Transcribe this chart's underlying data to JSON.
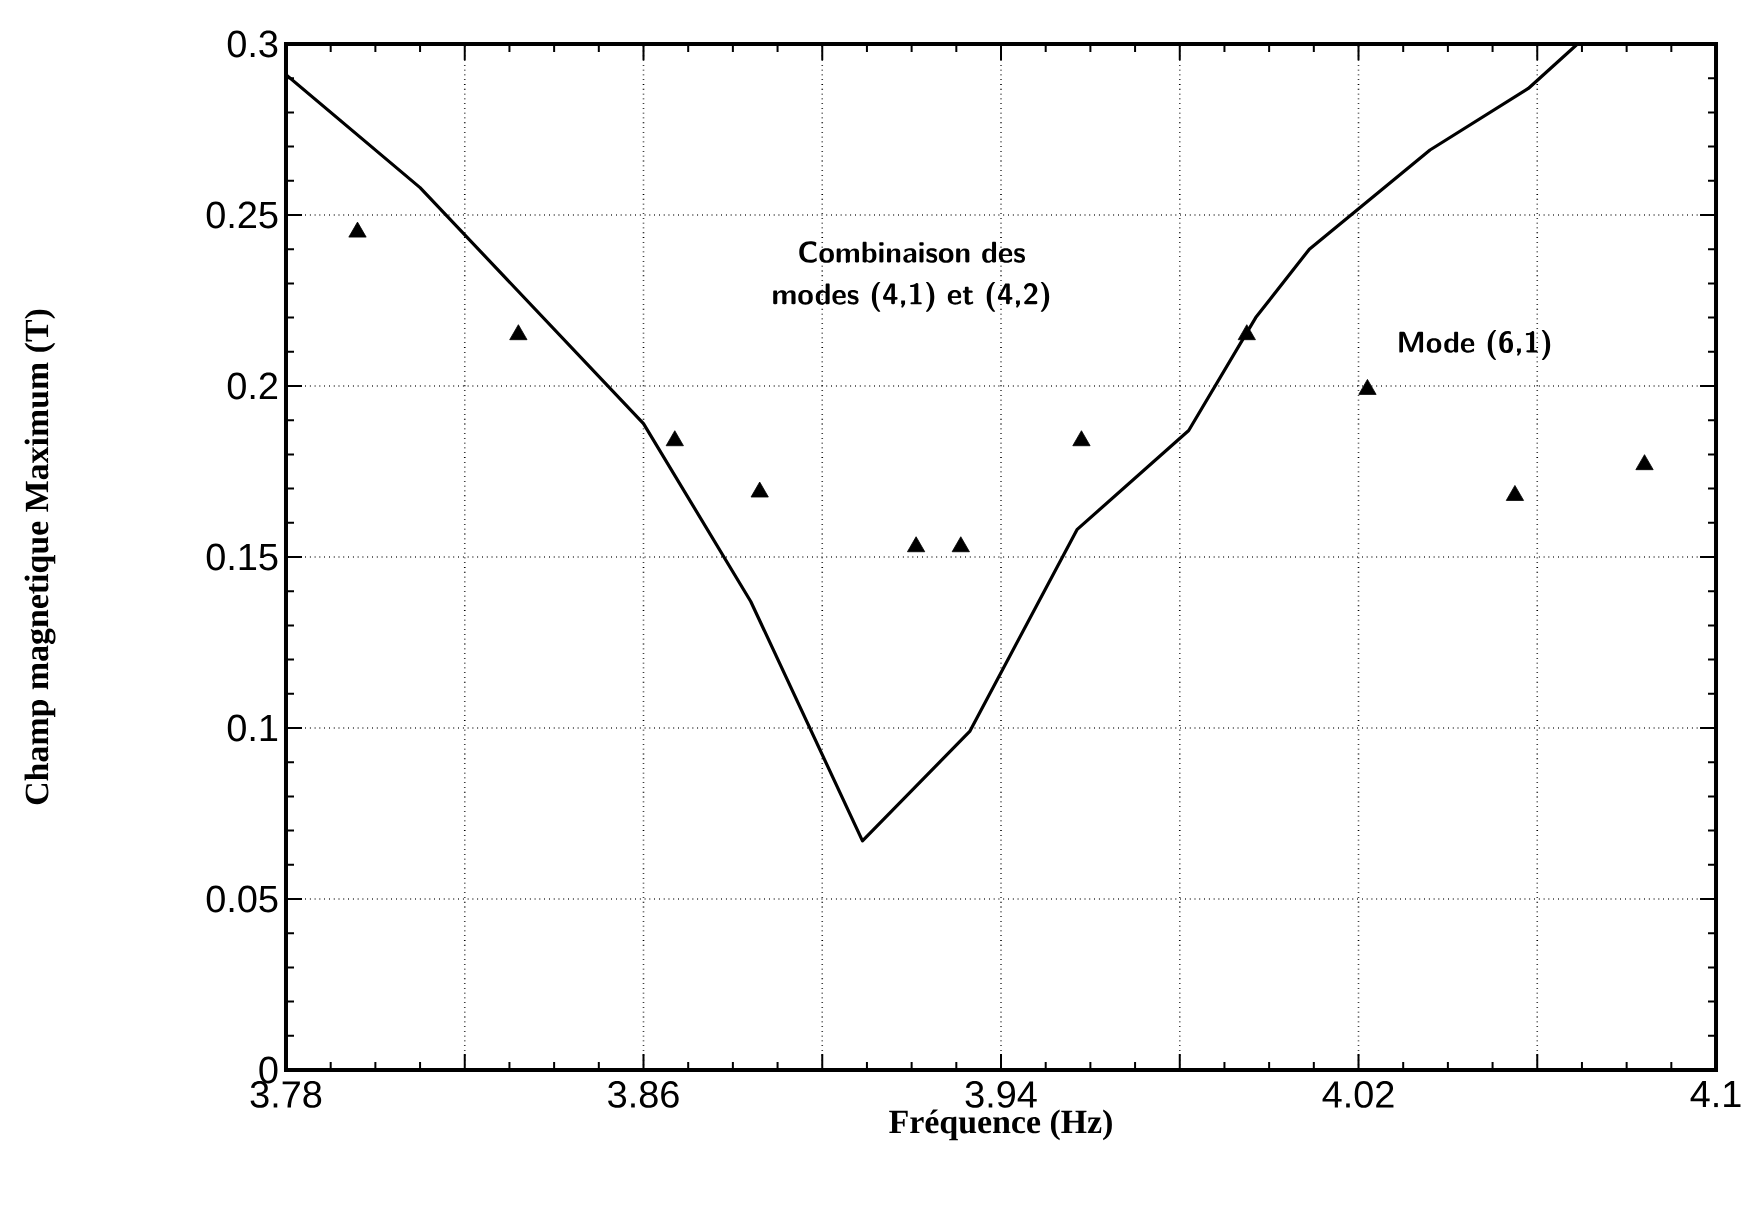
{
  "chart_data": {
    "type": "scatter",
    "xlabel": "Fréquence (Hz)",
    "ylabel": "Champ magnetique Maximum (T)",
    "xlim": [
      3.78,
      4.1
    ],
    "ylim": [
      0,
      0.3
    ],
    "xticks": [
      3.78,
      {
        "value": 3.82,
        "label": null
      },
      3.86,
      {
        "value": 3.9,
        "label": null
      },
      3.94,
      {
        "value": 3.98,
        "label": null
      },
      4.02,
      {
        "value": 4.06,
        "label": null
      },
      {
        "value": 4.1,
        "label": "4.1"
      }
    ],
    "yticks": [
      0,
      0.05,
      0.1,
      0.15,
      0.2,
      0.25,
      0.3
    ],
    "grid": true,
    "annotations": [
      "Combinaison des modes (4,1) et (4,2)",
      "Mode (6,1)"
    ],
    "series": [
      {
        "type": "line",
        "color": "#000000",
        "line_style": "solid",
        "marker": "none",
        "x": [
          3.78,
          3.81,
          3.86,
          3.884,
          3.909,
          3.933,
          3.957,
          3.982,
          3.997,
          4.009,
          4.036,
          4.058,
          4.069
        ],
        "values": [
          0.291,
          0.258,
          0.189,
          0.137,
          0.067,
          0.099,
          0.158,
          0.187,
          0.22,
          0.24,
          0.269,
          0.287,
          0.3
        ]
      },
      {
        "color": "#000000",
        "marker": "triangle",
        "x": [
          3.796,
          3.832,
          3.867,
          3.886,
          3.921,
          3.931,
          3.958,
          3.995,
          4.022,
          4.055,
          4.084
        ],
        "values": [
          0.245,
          0.215,
          0.184,
          0.169,
          0.153,
          0.153,
          0.184,
          0.215,
          0.199,
          0.168,
          0.177
        ]
      }
    ]
  }
}
